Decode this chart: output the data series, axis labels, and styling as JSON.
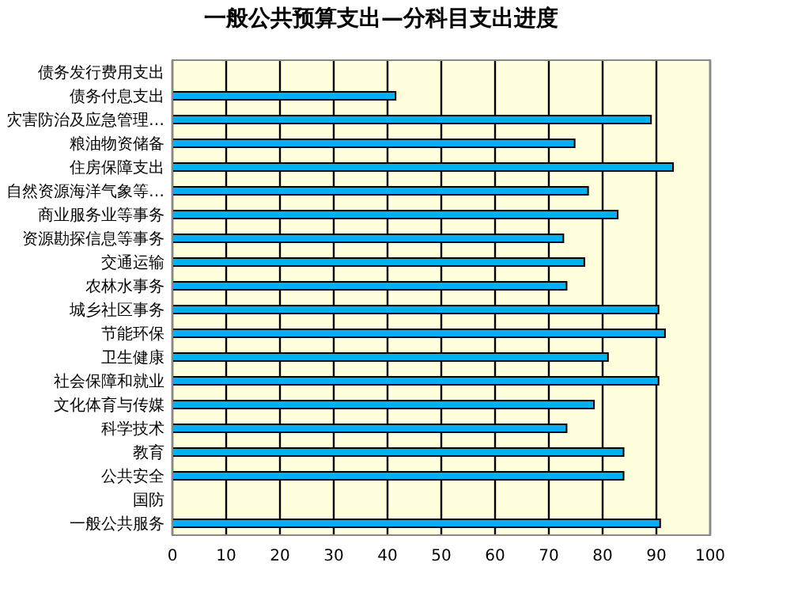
{
  "chart_data": {
    "type": "bar",
    "orientation": "horizontal",
    "title": "一般公共预算支出—分科目支出进度",
    "categories": [
      "债务发行费用支出",
      "债务付息支出",
      "灾害防治及应急管理…",
      "粮油物资储备",
      "住房保障支出",
      "自然资源海洋气象等…",
      "商业服务业等事务",
      "资源勘探信息等事务",
      "交通运输",
      "农林水事务",
      "城乡社区事务",
      "节能环保",
      "卫生健康",
      "社会保障和就业",
      "文化体育与传媒",
      "科学技术",
      "教育",
      "公共安全",
      "国防",
      "一般公共服务"
    ],
    "values": [
      null,
      41.5,
      89,
      74.8,
      93.1,
      77.3,
      82.8,
      72.7,
      76.6,
      73.3,
      90.4,
      91.6,
      81,
      90.4,
      78.4,
      73.3,
      83.9,
      83.9,
      null,
      90.7
    ],
    "color": "#00b0f0",
    "xlim": [
      0,
      100
    ],
    "xticks": [
      0,
      10,
      20,
      30,
      40,
      50,
      60,
      70,
      80,
      90,
      100
    ],
    "grid": "x"
  }
}
